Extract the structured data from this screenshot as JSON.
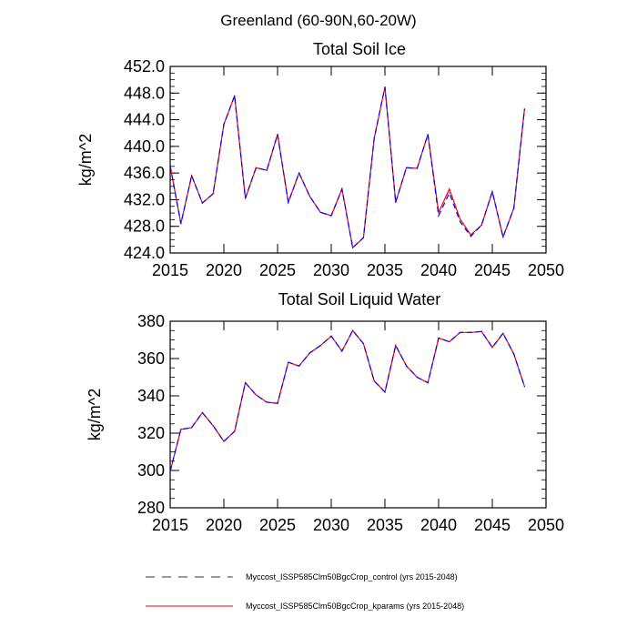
{
  "main_title": "Greenland (60-90N,60-20W)",
  "legend": [
    {
      "label": "Myccost_ISSP585Clm50BgcCrop_control (yrs 2015-2048)",
      "color": "#0000ff",
      "style": "dashed"
    },
    {
      "label": "Myccost_ISSP585Clm50BgcCrop_kparams (yrs 2015-2048)",
      "color": "#ff0000",
      "style": "solid"
    }
  ],
  "chart_data": [
    {
      "type": "line",
      "title": "Total Soil Ice",
      "xlabel": "",
      "ylabel": "kg/m^2",
      "xlim": [
        2015,
        2050
      ],
      "ylim": [
        424,
        452
      ],
      "xticks": [
        "2015",
        "2020",
        "2025",
        "2030",
        "2035",
        "2040",
        "2045",
        "2050"
      ],
      "yticks": [
        "424.0",
        "428.0",
        "432.0",
        "436.0",
        "440.0",
        "444.0",
        "448.0",
        "452.0"
      ],
      "x": [
        2015,
        2016,
        2017,
        2018,
        2019,
        2020,
        2021,
        2022,
        2023,
        2024,
        2025,
        2026,
        2027,
        2028,
        2029,
        2030,
        2031,
        2032,
        2033,
        2034,
        2035,
        2036,
        2037,
        2038,
        2039,
        2040,
        2041,
        2042,
        2043,
        2044,
        2045,
        2046,
        2047,
        2048
      ],
      "series": [
        {
          "name": "control",
          "values": [
            437.1,
            428.4,
            435.6,
            431.5,
            432.9,
            443.3,
            447.6,
            432.2,
            436.8,
            436.4,
            441.8,
            431.6,
            436.0,
            432.5,
            430.1,
            429.6,
            433.6,
            424.8,
            426.3,
            441.2,
            448.9,
            431.6,
            436.8,
            436.7,
            441.8,
            429.6,
            433.0,
            428.7,
            426.5,
            428.2,
            433.2,
            426.4,
            430.7,
            445.6
          ]
        },
        {
          "name": "kparams",
          "values": [
            437.1,
            428.4,
            435.6,
            431.5,
            432.9,
            443.3,
            447.6,
            432.2,
            436.8,
            436.4,
            441.8,
            431.6,
            436.0,
            432.5,
            430.1,
            429.6,
            433.6,
            424.8,
            426.3,
            441.2,
            448.9,
            431.6,
            436.8,
            436.7,
            441.8,
            430.1,
            433.6,
            429.1,
            426.7,
            428.2,
            433.2,
            426.4,
            430.7,
            445.6
          ]
        }
      ]
    },
    {
      "type": "line",
      "title": "Total Soil Liquid Water",
      "xlabel": "",
      "ylabel": "kg/m^2",
      "xlim": [
        2015,
        2050
      ],
      "ylim": [
        280,
        380
      ],
      "xticks": [
        "2015",
        "2020",
        "2025",
        "2030",
        "2035",
        "2040",
        "2045",
        "2050"
      ],
      "yticks": [
        "280",
        "300",
        "320",
        "340",
        "360",
        "380"
      ],
      "x": [
        2015,
        2016,
        2017,
        2018,
        2019,
        2020,
        2021,
        2022,
        2023,
        2024,
        2025,
        2026,
        2027,
        2028,
        2029,
        2030,
        2031,
        2032,
        2033,
        2034,
        2035,
        2036,
        2037,
        2038,
        2039,
        2040,
        2041,
        2042,
        2043,
        2044,
        2045,
        2046,
        2047,
        2048
      ],
      "series": [
        {
          "name": "control",
          "values": [
            299.5,
            322,
            323,
            331,
            324,
            315.6,
            321,
            347,
            340.5,
            336.6,
            336,
            358,
            356,
            363,
            367,
            372,
            364,
            375,
            368,
            348,
            342,
            367,
            356,
            350,
            347,
            371,
            369,
            374,
            374,
            374.5,
            366,
            373.5,
            362.5,
            345
          ]
        },
        {
          "name": "kparams",
          "values": [
            299.5,
            322,
            323,
            331,
            324,
            315.6,
            321,
            347,
            340.5,
            336.6,
            336,
            358,
            356,
            363,
            367,
            372,
            364,
            375,
            368,
            348,
            342,
            367,
            356,
            350,
            347,
            371,
            369,
            374,
            374,
            374.5,
            366,
            373.5,
            362.5,
            345
          ]
        }
      ]
    }
  ]
}
